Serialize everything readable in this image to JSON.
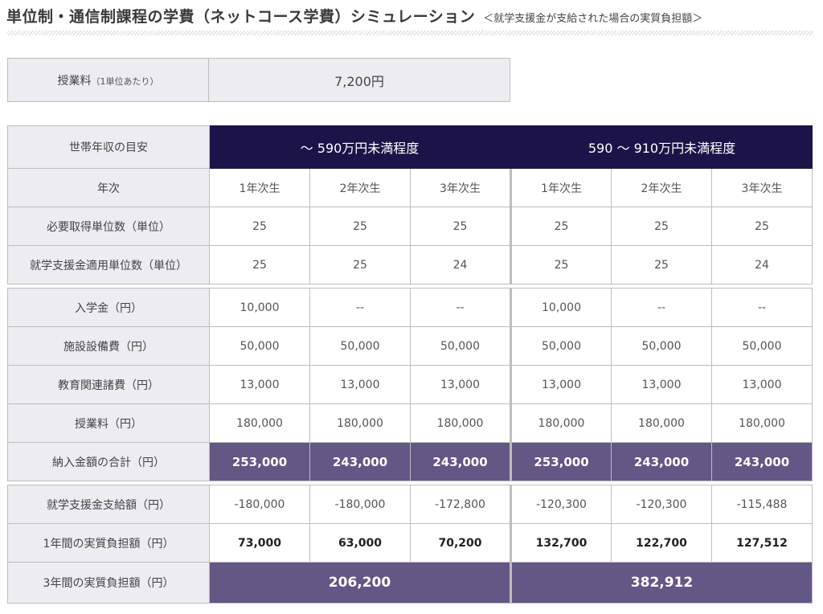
{
  "header": {
    "title": "単位制・通信制課程の学費（ネットコース学費）シミュレーション",
    "subtitle": "＜就学支援金が支給された場合の実質負担額＞"
  },
  "tuition": {
    "label": "授業料",
    "label_note": "（1単位あたり）",
    "value": "7,200円"
  },
  "simulation": {
    "header_label": "世帯年収の目安",
    "bands": [
      "～ 590万円未満程度",
      "590 ～ 910万円未満程度"
    ],
    "year_label": "年次",
    "years": [
      "1年次生",
      "2年次生",
      "3年次生",
      "1年次生",
      "2年次生",
      "3年次生"
    ],
    "credit_rows": [
      {
        "label": "必要取得単位数（単位）",
        "values": [
          "25",
          "25",
          "25",
          "25",
          "25",
          "25"
        ]
      },
      {
        "label": "就学支援金適用単位数（単位）",
        "values": [
          "25",
          "25",
          "24",
          "25",
          "25",
          "24"
        ]
      }
    ],
    "fee_rows": [
      {
        "label": "入学金（円）",
        "values": [
          "10,000",
          "--",
          "--",
          "10,000",
          "--",
          "--"
        ]
      },
      {
        "label": "施設設備費（円）",
        "values": [
          "50,000",
          "50,000",
          "50,000",
          "50,000",
          "50,000",
          "50,000"
        ]
      },
      {
        "label": "教育関連諸費（円）",
        "values": [
          "13,000",
          "13,000",
          "13,000",
          "13,000",
          "13,000",
          "13,000"
        ]
      },
      {
        "label": "授業料（円）",
        "values": [
          "180,000",
          "180,000",
          "180,000",
          "180,000",
          "180,000",
          "180,000"
        ]
      }
    ],
    "total_row": {
      "label": "納入金額の合計（円）",
      "values": [
        "253,000",
        "243,000",
        "243,000",
        "253,000",
        "243,000",
        "243,000"
      ]
    },
    "support_row": {
      "label": "就学支援金支給額（円）",
      "values": [
        "-180,000",
        "-180,000",
        "-172,800",
        "-120,300",
        "-120,300",
        "-115,488"
      ]
    },
    "annual_row": {
      "label": "1年間の実質負担額（円）",
      "values": [
        "73,000",
        "63,000",
        "70,200",
        "132,700",
        "122,700",
        "127,512"
      ]
    },
    "three_year_row": {
      "label": "3年間の実質負担額（円）",
      "values": [
        "206,200",
        "382,912"
      ]
    }
  },
  "colors": {
    "band_header": "#1c1448",
    "highlight": "#625785",
    "label_bg": "#ececf1",
    "border": "#bdbdbd"
  }
}
